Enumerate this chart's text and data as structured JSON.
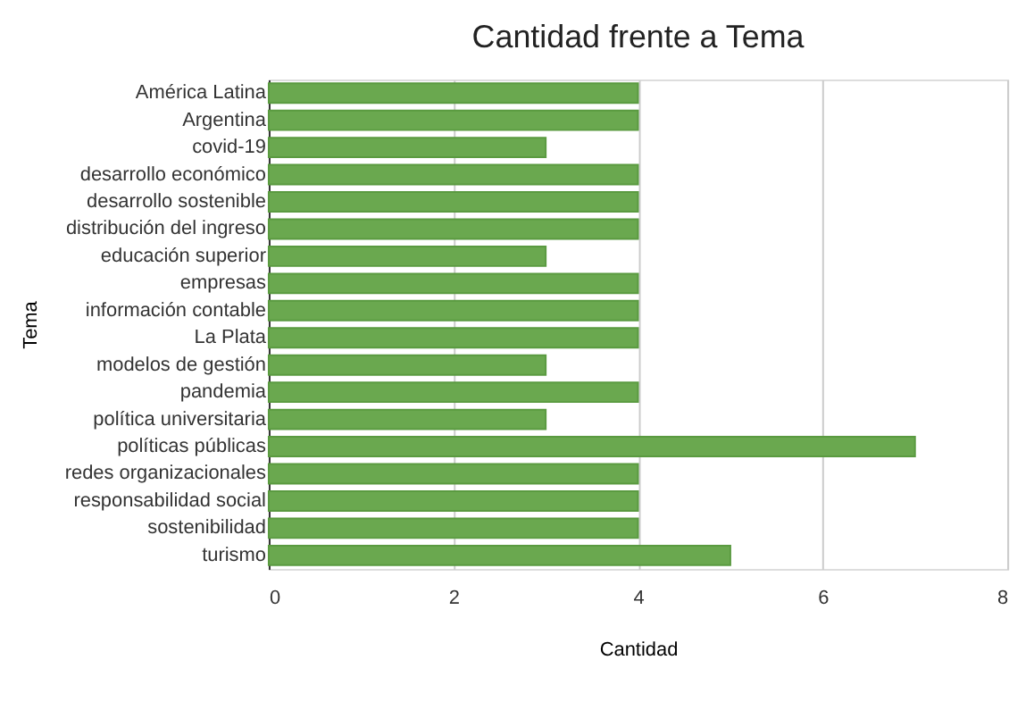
{
  "chart_data": {
    "type": "bar",
    "orientation": "horizontal",
    "title": "Cantidad frente a Tema",
    "xlabel": "Cantidad",
    "ylabel": "Tema",
    "categories": [
      "América Latina",
      "Argentina",
      "covid-19",
      "desarrollo económico",
      "desarrollo sostenible",
      "distribución del ingreso",
      "educación superior",
      "empresas",
      "información contable",
      "La Plata",
      "modelos de gestión",
      "pandemia",
      "política universitaria",
      "políticas públicas",
      "redes organizacionales",
      "responsabilidad social",
      "sostenibilidad",
      "turismo"
    ],
    "values": [
      4,
      4,
      3,
      4,
      4,
      4,
      3,
      4,
      4,
      4,
      3,
      4,
      3,
      7,
      4,
      4,
      4,
      5
    ],
    "color": "#6aa84f",
    "xlim": [
      0,
      8
    ],
    "xticks": [
      0,
      2,
      4,
      6,
      8
    ],
    "grid": "x"
  }
}
